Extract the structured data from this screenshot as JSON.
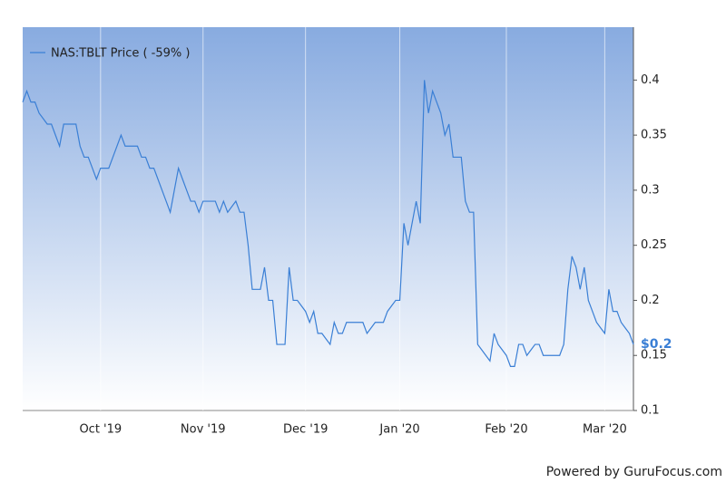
{
  "chart_data": {
    "type": "line",
    "legend": "top-left",
    "annotation": "$0.2",
    "footer": "Powered by GuruFocus.com",
    "categories": [
      null,
      null,
      null,
      null,
      null,
      null,
      null,
      null,
      null,
      null,
      null,
      null,
      null,
      null,
      null,
      null,
      null,
      null,
      null,
      "Oct '19",
      null,
      null,
      null,
      null,
      null,
      null,
      null,
      null,
      null,
      null,
      null,
      null,
      null,
      null,
      null,
      null,
      null,
      null,
      null,
      null,
      null,
      null,
      null,
      null,
      "Nov '19",
      null,
      null,
      null,
      null,
      null,
      null,
      null,
      null,
      null,
      null,
      null,
      null,
      null,
      null,
      null,
      null,
      null,
      null,
      null,
      null,
      null,
      null,
      null,
      null,
      "Dec '19",
      null,
      null,
      null,
      null,
      null,
      null,
      null,
      null,
      null,
      null,
      null,
      null,
      null,
      null,
      null,
      null,
      null,
      null,
      null,
      null,
      null,
      null,
      "Jan '20",
      null,
      null,
      null,
      null,
      null,
      null,
      null,
      null,
      null,
      null,
      null,
      null,
      null,
      null,
      null,
      null,
      null,
      null,
      null,
      null,
      null,
      null,
      null,
      null,
      null,
      "Feb '20",
      null,
      null,
      null,
      null,
      null,
      null,
      null,
      null,
      null,
      null,
      null,
      null,
      null,
      null,
      null,
      null,
      null,
      null,
      null,
      null,
      null,
      null,
      null,
      "Mar '20",
      null,
      null,
      null,
      null,
      null,
      null,
      null
    ],
    "series": [
      {
        "name": "NAS:TBLT Price ( -59% )",
        "color": "#3a7fd5",
        "values": [
          0.38,
          0.39,
          0.38,
          0.38,
          0.37,
          0.365,
          0.36,
          0.36,
          0.35,
          0.34,
          0.36,
          0.36,
          0.36,
          0.36,
          0.34,
          0.33,
          0.33,
          0.32,
          0.31,
          0.32,
          0.32,
          0.32,
          0.33,
          0.34,
          0.35,
          0.34,
          0.34,
          0.34,
          0.34,
          0.33,
          0.33,
          0.32,
          0.32,
          0.31,
          0.3,
          0.29,
          0.28,
          0.3,
          0.32,
          0.31,
          0.3,
          0.29,
          0.29,
          0.28,
          0.29,
          0.29,
          0.29,
          0.29,
          0.28,
          0.29,
          0.28,
          0.285,
          0.29,
          0.28,
          0.28,
          0.25,
          0.21,
          0.21,
          0.21,
          0.23,
          0.2,
          0.2,
          0.16,
          0.16,
          0.16,
          0.23,
          0.2,
          0.2,
          0.195,
          0.19,
          0.18,
          0.19,
          0.17,
          0.17,
          0.165,
          0.16,
          0.18,
          0.17,
          0.17,
          0.18,
          0.18,
          0.18,
          0.18,
          0.18,
          0.17,
          0.175,
          0.18,
          0.18,
          0.18,
          0.19,
          0.195,
          0.2,
          0.2,
          0.27,
          0.25,
          0.27,
          0.29,
          0.27,
          0.4,
          0.37,
          0.39,
          0.38,
          0.37,
          0.35,
          0.36,
          0.33,
          0.33,
          0.33,
          0.29,
          0.28,
          0.28,
          0.16,
          0.155,
          0.15,
          0.145,
          0.17,
          0.16,
          0.155,
          0.15,
          0.14,
          0.14,
          0.16,
          0.16,
          0.15,
          0.155,
          0.16,
          0.16,
          0.15,
          0.15,
          0.15,
          0.15,
          0.15,
          0.16,
          0.21,
          0.24,
          0.23,
          0.21,
          0.23,
          0.2,
          0.19,
          0.18,
          0.175,
          0.17,
          0.21,
          0.19,
          0.19,
          0.18,
          0.175,
          0.17,
          0.16
        ]
      }
    ],
    "ylim": [
      0.1,
      0.448
    ],
    "yticks": [
      0.1,
      0.15,
      0.2,
      0.25,
      0.3,
      0.35,
      0.4
    ],
    "grid": "x"
  }
}
